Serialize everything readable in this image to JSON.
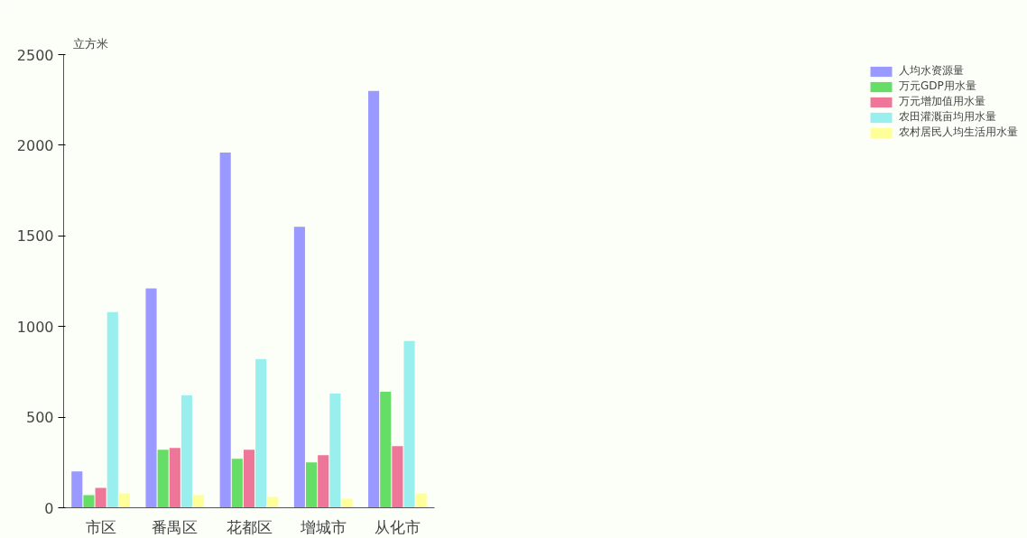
{
  "chart_data": {
    "type": "bar",
    "ylabel": "立方米",
    "categories": [
      "市区",
      "番禺区",
      "花都区",
      "增城市",
      "从化市"
    ],
    "series": [
      {
        "name": "人均水资源量",
        "color": "#9999ff",
        "values": [
          200,
          1210,
          1960,
          1550,
          2300
        ]
      },
      {
        "name": "万元GDP用水量",
        "color": "#66dd66",
        "values": [
          70,
          320,
          270,
          250,
          640
        ]
      },
      {
        "name": "万元增加值用水量",
        "color": "#ee7799",
        "values": [
          110,
          330,
          320,
          290,
          340
        ]
      },
      {
        "name": "农田灌溉亩均用水量",
        "color": "#99eeee",
        "values": [
          1080,
          620,
          820,
          630,
          920
        ]
      },
      {
        "name": "农村居民人均生活用水量",
        "color": "#ffff99",
        "values": [
          80,
          70,
          60,
          50,
          80
        ]
      }
    ],
    "ylim": [
      0,
      2500
    ],
    "yticks": [
      0,
      500,
      1000,
      1500,
      2000,
      2500
    ],
    "grid": false,
    "legend": "top right"
  }
}
